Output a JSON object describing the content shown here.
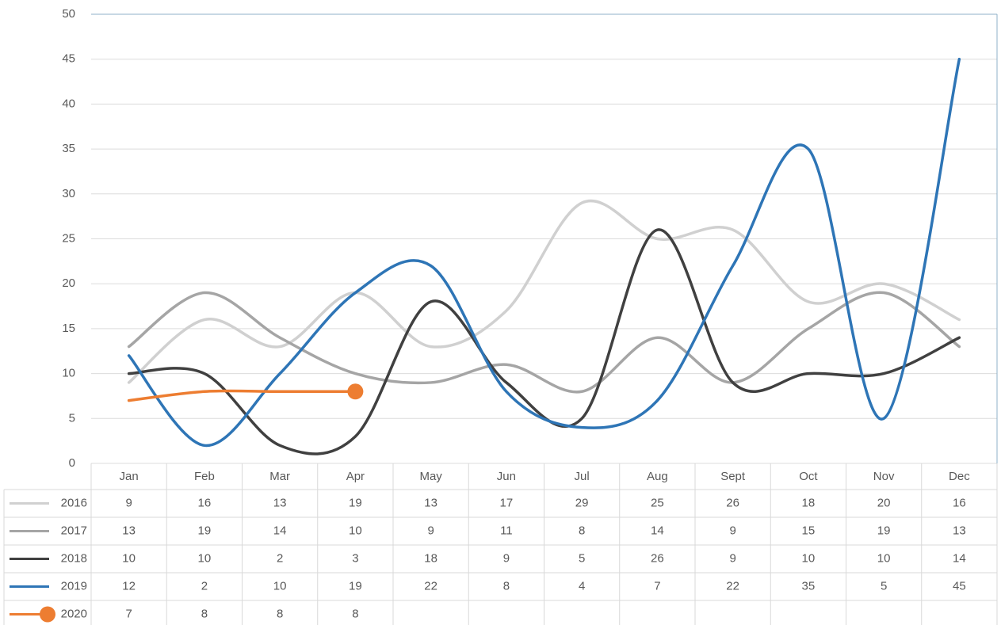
{
  "chart_data": {
    "type": "line",
    "categories": [
      "Jan",
      "Feb",
      "Mar",
      "Apr",
      "May",
      "Jun",
      "Jul",
      "Aug",
      "Sept",
      "Oct",
      "Nov",
      "Dec"
    ],
    "series": [
      {
        "name": "2016",
        "color": "#d0d0d0",
        "values": [
          9,
          16,
          13,
          19,
          13,
          17,
          29,
          25,
          26,
          18,
          20,
          16
        ]
      },
      {
        "name": "2017",
        "color": "#a5a5a5",
        "values": [
          13,
          19,
          14,
          10,
          9,
          11,
          8,
          14,
          9,
          15,
          19,
          13
        ]
      },
      {
        "name": "2018",
        "color": "#404040",
        "values": [
          10,
          10,
          2,
          3,
          18,
          9,
          5,
          26,
          9,
          10,
          10,
          14
        ]
      },
      {
        "name": "2019",
        "color": "#2e75b6",
        "values": [
          12,
          2,
          10,
          19,
          22,
          8,
          4,
          7,
          22,
          35,
          5,
          45
        ]
      },
      {
        "name": "2020",
        "color": "#ed7d31",
        "values": [
          7,
          8,
          8,
          8,
          null,
          null,
          null,
          null,
          null,
          null,
          null,
          null
        ]
      }
    ],
    "ylim": [
      0,
      50
    ],
    "yticks": [
      0,
      5,
      10,
      15,
      20,
      25,
      30,
      35,
      40,
      45,
      50
    ],
    "grid": true,
    "smooth": true,
    "data_table": true
  }
}
